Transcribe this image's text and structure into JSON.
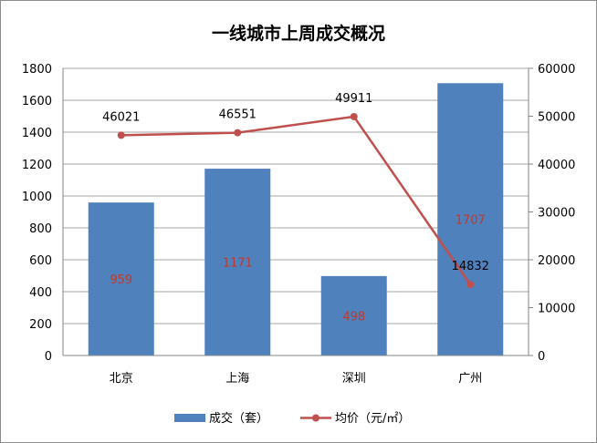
{
  "chart_data": {
    "type": "bar+line",
    "title": "一线城市上周成交概况",
    "categories": [
      "北京",
      "上海",
      "深圳",
      "广州"
    ],
    "series": [
      {
        "name": "成交（套）",
        "type": "bar",
        "axis": "left",
        "values": [
          959,
          1171,
          498,
          1707
        ],
        "color": "#4f81bd",
        "label_color": "#c0392b"
      },
      {
        "name": "均价（元/㎡）",
        "type": "line",
        "axis": "right",
        "values": [
          46021,
          46551,
          49911,
          14832
        ],
        "color": "#c0504d",
        "label_color": "#000000"
      }
    ],
    "y_left": {
      "range": [
        0,
        1800
      ],
      "ticks": [
        0,
        200,
        400,
        600,
        800,
        1000,
        1200,
        1400,
        1600,
        1800
      ]
    },
    "y_right": {
      "range": [
        0,
        60000
      ],
      "ticks": [
        0,
        10000,
        20000,
        30000,
        40000,
        50000,
        60000
      ]
    },
    "grid": true,
    "legend": "bottom"
  }
}
